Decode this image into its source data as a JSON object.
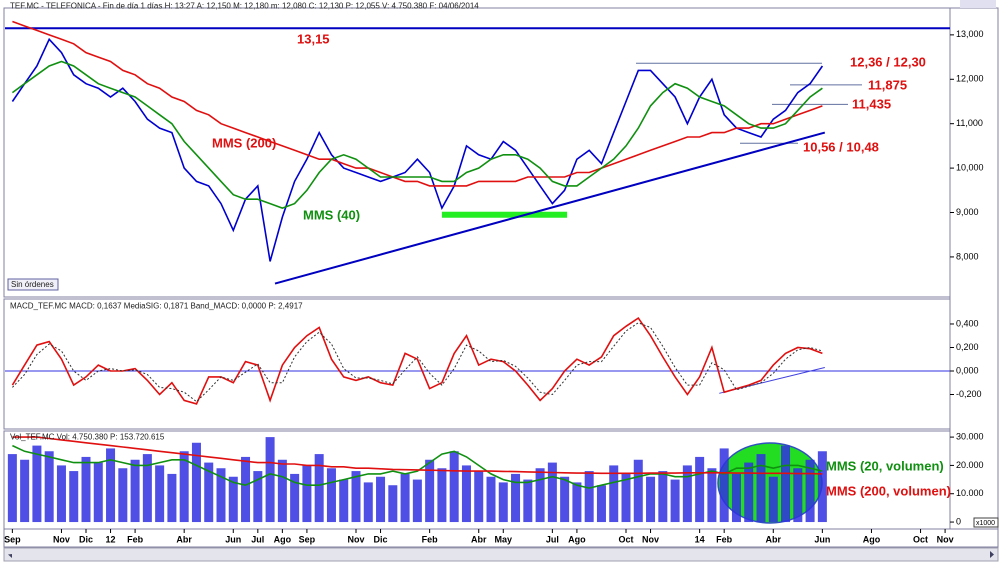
{
  "chart_data": [
    {
      "type": "line",
      "title": "TEF.MC - TELEFONICA - Fin de día 1 días  H: 13:27  A: 12,150  M: 12,180  m: 12,080  C: 12,130  P: 12,055  V: 4.750.380  F: 04/06/2014",
      "badge": "Sin órdenes",
      "x": [
        0,
        0.5,
        1,
        1.5,
        2,
        2.5,
        3,
        3.5,
        4,
        4.5,
        5,
        5.5,
        6,
        6.5,
        7,
        7.5,
        8,
        8.5,
        9,
        9.5,
        10,
        10.5,
        11,
        11.5,
        12,
        12.5,
        13,
        13.5,
        14,
        14.5,
        15,
        15.5,
        16,
        16.5,
        17,
        17.5,
        18,
        18.5,
        19,
        19.5,
        20,
        20.5,
        21,
        21.5,
        22,
        22.5,
        23,
        23.5,
        24,
        24.5,
        25,
        25.5,
        26,
        26.5,
        27,
        27.5,
        28,
        28.5,
        29,
        29.5,
        30,
        30.5,
        31,
        31.5,
        32,
        32.5,
        33
      ],
      "xlim": [
        -0.3,
        38.2
      ],
      "ylim": [
        7.12,
        13.56
      ],
      "yticks": [
        {
          "value": 8,
          "label": "8,000"
        },
        {
          "value": 9,
          "label": "9,000"
        },
        {
          "value": 10,
          "label": "10,000"
        },
        {
          "value": 11,
          "label": "11,000"
        },
        {
          "value": 12,
          "label": "12,000"
        },
        {
          "value": 13,
          "label": "13,000"
        }
      ],
      "series": [
        {
          "color": "#0000d0",
          "values": [
            11.5,
            11.9,
            12.3,
            12.9,
            12.6,
            12.1,
            11.9,
            11.8,
            11.6,
            11.8,
            11.5,
            11.1,
            10.9,
            10.8,
            10.0,
            9.7,
            9.6,
            9.2,
            8.6,
            9.3,
            9.6,
            7.9,
            8.9,
            9.7,
            10.2,
            10.8,
            10.3,
            10.0,
            9.9,
            9.8,
            9.7,
            9.8,
            9.9,
            10.2,
            9.9,
            9.1,
            9.6,
            10.5,
            10.3,
            10.2,
            10.6,
            10.4,
            10.0,
            9.6,
            9.2,
            9.5,
            10.2,
            10.4,
            10.1,
            10.8,
            11.5,
            12.2,
            12.2,
            11.9,
            11.6,
            11.0,
            11.6,
            12.0,
            11.2,
            10.9,
            10.8,
            10.7,
            11.1,
            11.3,
            11.7,
            11.9,
            12.3
          ]
        },
        {
          "name": "MMS (200)",
          "color": "#e01010",
          "values": [
            13.3,
            13.2,
            13.1,
            13.0,
            12.9,
            12.8,
            12.6,
            12.5,
            12.4,
            12.2,
            12.1,
            11.9,
            11.8,
            11.6,
            11.5,
            11.3,
            11.2,
            11.0,
            10.9,
            10.8,
            10.7,
            10.6,
            10.5,
            10.4,
            10.3,
            10.2,
            10.2,
            10.1,
            10.0,
            10.0,
            9.9,
            9.8,
            9.7,
            9.7,
            9.6,
            9.6,
            9.6,
            9.6,
            9.7,
            9.7,
            9.7,
            9.7,
            9.8,
            9.8,
            9.8,
            9.8,
            9.9,
            9.9,
            10.0,
            10.1,
            10.2,
            10.3,
            10.4,
            10.5,
            10.6,
            10.7,
            10.7,
            10.8,
            10.8,
            10.9,
            10.9,
            11.0,
            11.0,
            11.1,
            11.2,
            11.3,
            11.4
          ]
        },
        {
          "name": "MMS (40)",
          "color": "#109010",
          "values": [
            11.7,
            11.9,
            12.1,
            12.3,
            12.4,
            12.3,
            12.1,
            11.9,
            11.8,
            11.7,
            11.6,
            11.4,
            11.2,
            11.0,
            10.6,
            10.3,
            10.0,
            9.7,
            9.4,
            9.3,
            9.3,
            9.2,
            9.1,
            9.2,
            9.5,
            9.9,
            10.2,
            10.3,
            10.2,
            10.0,
            9.8,
            9.8,
            9.8,
            9.8,
            9.8,
            9.7,
            9.7,
            9.9,
            10.0,
            10.2,
            10.3,
            10.3,
            10.2,
            10.0,
            9.7,
            9.6,
            9.6,
            9.8,
            10.0,
            10.2,
            10.5,
            10.9,
            11.4,
            11.7,
            11.9,
            11.8,
            11.6,
            11.5,
            11.4,
            11.2,
            11.0,
            10.9,
            10.9,
            11.0,
            11.3,
            11.6,
            11.8
          ]
        }
      ],
      "levels": [
        {
          "label": "13,15",
          "value": 13.15
        },
        {
          "label": "12,36 / 12,30",
          "value": 12.36
        },
        {
          "label": "11,875",
          "value": 11.875
        },
        {
          "label": "11,435",
          "value": 11.435
        },
        {
          "label": "10,56 / 10,48",
          "value": 10.56
        }
      ],
      "support": {
        "value": 8.95,
        "x": [
          17.5,
          22.6
        ]
      },
      "trendline": {
        "x": [
          10.7,
          33.1
        ],
        "y": [
          7.4,
          10.8
        ]
      }
    },
    {
      "type": "line",
      "title": "MACD_TEF.MC  MACD: 0,1637  MediaSIG: 0,1871  Band_MACD: 0,0000  P: 2,4917",
      "ylim": [
        -0.485,
        0.604
      ],
      "yticks": [
        {
          "value": -0.2,
          "label": "-0,200"
        },
        {
          "value": 0,
          "label": "0,000"
        },
        {
          "value": 0.2,
          "label": "0,200"
        },
        {
          "value": 0.4,
          "label": "0,400"
        }
      ],
      "series": [
        {
          "color": "#e01010",
          "values": [
            -0.12,
            0.05,
            0.22,
            0.25,
            0.1,
            -0.12,
            -0.05,
            0.05,
            0,
            0,
            0.02,
            -0.08,
            -0.2,
            -0.1,
            -0.25,
            -0.28,
            -0.05,
            -0.05,
            -0.1,
            0.08,
            0.05,
            -0.25,
            0.05,
            0.2,
            0.3,
            0.37,
            0.1,
            -0.05,
            -0.08,
            -0.05,
            -0.1,
            -0.12,
            0.15,
            0.1,
            -0.15,
            -0.1,
            0.15,
            0.3,
            0.05,
            0.1,
            0.08,
            0,
            -0.12,
            -0.25,
            -0.15,
            0,
            0.1,
            0.05,
            0.12,
            0.3,
            0.38,
            0.45,
            0.3,
            0.12,
            -0.05,
            -0.2,
            -0.05,
            0.2,
            -0.18,
            -0.15,
            -0.12,
            -0.08,
            0.05,
            0.15,
            0.2,
            0.19,
            0.15
          ]
        },
        {
          "color": "#303030",
          "dashed": true,
          "values": [
            -0.14,
            -0.03,
            0.14,
            0.23,
            0.17,
            0,
            -0.08,
            0,
            0.02,
            0,
            0.01,
            -0.03,
            -0.14,
            -0.15,
            -0.18,
            -0.26,
            -0.16,
            -0.05,
            -0.08,
            -0.01,
            0.06,
            -0.1,
            -0.1,
            0.12,
            0.25,
            0.33,
            0.23,
            0.02,
            -0.06,
            -0.06,
            -0.08,
            -0.11,
            0.01,
            0.12,
            -0.02,
            -0.12,
            0.02,
            0.22,
            0.17,
            0.08,
            0.09,
            0.04,
            -0.06,
            -0.18,
            -0.2,
            -0.08,
            0.05,
            0.08,
            0.08,
            0.21,
            0.34,
            0.41,
            0.37,
            0.21,
            0.03,
            -0.12,
            -0.12,
            0.07,
            0.01,
            -0.16,
            -0.13,
            -0.1,
            -0.02,
            0.1,
            0.18,
            0.2,
            0.17
          ]
        }
      ],
      "trendline": {
        "x": [
          28.8,
          33.1
        ],
        "y": [
          -0.19,
          0.03
        ]
      }
    },
    {
      "type": "bar",
      "title": "Vol_TEF.MC  Vol: 4.750.380  P: 153.720.615",
      "unit": "x1000",
      "ylim": [
        -2100,
        31800
      ],
      "yticks": [
        0,
        {
          "value": 10000,
          "label": "10.000"
        },
        {
          "value": 20000,
          "label": "20.000"
        },
        {
          "value": 30000,
          "label": "30.000"
        }
      ],
      "xticks": [
        {
          "value": 0,
          "label": "Sep"
        },
        {
          "value": 2,
          "label": "Nov"
        },
        {
          "value": 3,
          "label": "Dic"
        },
        {
          "value": 4,
          "label": "12"
        },
        {
          "value": 5,
          "label": "Feb"
        },
        {
          "value": 7,
          "label": "Abr"
        },
        {
          "value": 9,
          "label": "Jun"
        },
        {
          "value": 10,
          "label": "Jul"
        },
        {
          "value": 11,
          "label": "Ago"
        },
        {
          "value": 12,
          "label": "Sep"
        },
        {
          "value": 14,
          "label": "Nov"
        },
        {
          "value": 15,
          "label": "Dic"
        },
        {
          "value": 17,
          "label": "Feb"
        },
        {
          "value": 19,
          "label": "Abr"
        },
        {
          "value": 20,
          "label": "May"
        },
        {
          "value": 22,
          "label": "Jul"
        },
        {
          "value": 23,
          "label": "Ago"
        },
        {
          "value": 25,
          "label": "Oct"
        },
        {
          "value": 26,
          "label": "Nov"
        },
        {
          "value": 28,
          "label": "14"
        },
        {
          "value": 29,
          "label": "Feb"
        },
        {
          "value": 31,
          "label": "Abr"
        },
        {
          "value": 33,
          "label": "Jun"
        },
        {
          "value": 35,
          "label": "Ago"
        },
        {
          "value": 37,
          "label": "Oct"
        },
        {
          "value": 38,
          "label": "Nov"
        }
      ],
      "series": [
        {
          "type": "bar",
          "color": "#3030e0",
          "values": [
            24000,
            22000,
            27000,
            25000,
            20000,
            18000,
            23000,
            21000,
            26000,
            19000,
            22000,
            24000,
            20000,
            17000,
            25000,
            28000,
            21000,
            19000,
            16000,
            23000,
            18000,
            30000,
            22000,
            17000,
            20000,
            24000,
            19000,
            15000,
            18000,
            14000,
            16000,
            13000,
            17000,
            15000,
            22000,
            19000,
            25000,
            20000,
            18000,
            16000,
            14000,
            17000,
            15000,
            19000,
            21000,
            16000,
            14000,
            18000,
            13000,
            20000,
            17000,
            22000,
            16000,
            18000,
            15000,
            20000,
            23000,
            19000,
            26000,
            17000,
            21000,
            24000,
            16000,
            27000,
            19000,
            22000,
            25000
          ]
        },
        {
          "type": "line",
          "name": "MMS (20, volumen)",
          "color": "#109010",
          "values": [
            27000,
            25000,
            24000,
            23000,
            22000,
            21000,
            21000,
            21000,
            22000,
            21000,
            20000,
            20000,
            21000,
            22000,
            22000,
            20000,
            18000,
            16000,
            14000,
            13000,
            15000,
            17000,
            16000,
            14000,
            13000,
            13000,
            14000,
            15000,
            16000,
            17000,
            17000,
            18000,
            17000,
            18000,
            21000,
            24000,
            25000,
            23000,
            20000,
            17000,
            15000,
            14000,
            14000,
            15000,
            16000,
            15000,
            13000,
            12000,
            13000,
            14000,
            15000,
            16000,
            17000,
            17000,
            16000,
            16000,
            17000,
            18000,
            17000,
            19000,
            19000,
            20000,
            19000,
            20000,
            20000,
            19000,
            18000
          ]
        },
        {
          "type": "line",
          "name": "MMS (200, volumen)",
          "color": "#e01010",
          "values": [
            30000,
            30000,
            30000,
            29500,
            29000,
            28500,
            28000,
            27500,
            27000,
            26500,
            26000,
            25500,
            25000,
            24500,
            24000,
            23500,
            23000,
            22500,
            22000,
            21500,
            21000,
            21000,
            20500,
            20500,
            20000,
            20000,
            19500,
            19500,
            19000,
            19000,
            18800,
            18600,
            18500,
            18400,
            18300,
            18200,
            18100,
            18000,
            18000,
            18000,
            17900,
            17800,
            17700,
            17600,
            17500,
            17400,
            17300,
            17300,
            17200,
            17200,
            17200,
            17200,
            17300,
            17300,
            17300,
            17400,
            17400,
            17400,
            17400,
            17300,
            17300,
            17200,
            17200,
            17200,
            17100,
            17100,
            17000
          ]
        }
      ]
    }
  ]
}
